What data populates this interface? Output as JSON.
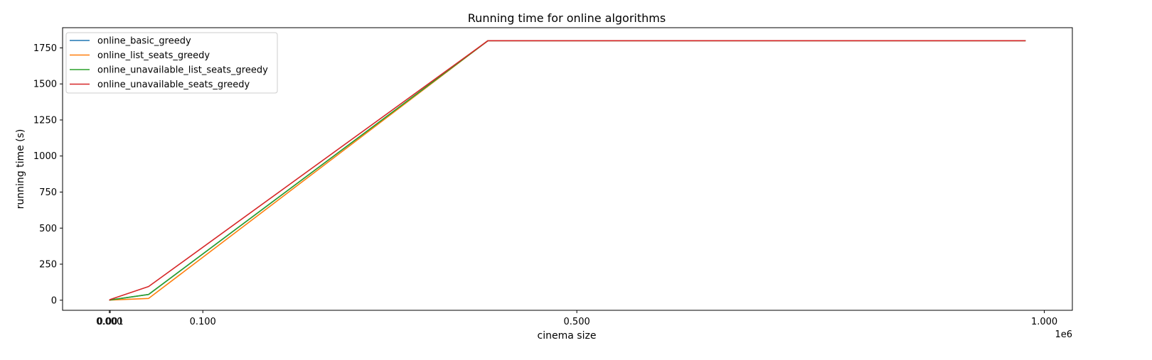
{
  "chart_data": {
    "type": "line",
    "title": "Running time for online algorithms",
    "xlabel": "cinema size",
    "ylabel": "running time (s)",
    "x_offset_text": "1e6",
    "xlim": [
      -0.05,
      1.03
    ],
    "ylim": [
      -70,
      1890
    ],
    "xticks": [
      {
        "value": 0.0,
        "label": "0.000"
      },
      {
        "value": 0.001,
        "label": "0.001"
      },
      {
        "value": 0.1,
        "label": "0.100"
      },
      {
        "value": 0.5,
        "label": "0.500"
      },
      {
        "value": 1.0,
        "label": "1.000"
      }
    ],
    "yticks": [
      0,
      250,
      500,
      750,
      1000,
      1250,
      1500,
      1750
    ],
    "grid": false,
    "legend_position": "upper-left",
    "x": [
      0.0,
      0.001,
      0.042,
      0.405,
      0.98
    ],
    "series": [
      {
        "name": "online_basic_greedy",
        "color": "#1f77b4",
        "values": [
          0,
          2,
          40,
          1800,
          1800
        ]
      },
      {
        "name": "online_list_seats_greedy",
        "color": "#ff7f0e",
        "values": [
          0,
          1,
          12,
          1800,
          1800
        ]
      },
      {
        "name": "online_unavailable_list_seats_greedy",
        "color": "#2ca02c",
        "values": [
          0,
          2,
          40,
          1800,
          1800
        ]
      },
      {
        "name": "online_unavailable_seats_greedy",
        "color": "#d62728",
        "values": [
          0,
          5,
          95,
          1800,
          1800
        ]
      }
    ]
  }
}
